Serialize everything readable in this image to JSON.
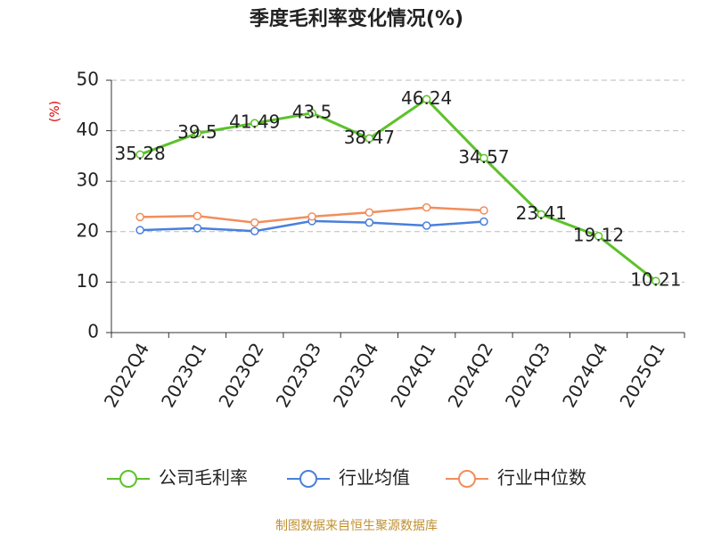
{
  "chart_data": {
    "type": "line",
    "title": "季度毛利率变化情况(%)",
    "y_label": "(%)",
    "categories": [
      "2022Q4",
      "2023Q1",
      "2023Q2",
      "2023Q3",
      "2023Q4",
      "2024Q1",
      "2024Q2",
      "2024Q3",
      "2024Q4",
      "2025Q1"
    ],
    "series": [
      {
        "name": "公司毛利率",
        "color": "#5cc22a",
        "values": [
          35.28,
          39.5,
          41.49,
          43.5,
          38.47,
          46.24,
          34.57,
          23.41,
          19.12,
          10.21
        ],
        "show_labels": true
      },
      {
        "name": "行业均值",
        "color": "#4a7fdc",
        "values": [
          20.3,
          20.7,
          20.1,
          22.1,
          21.8,
          21.2,
          22.0,
          null,
          null,
          null
        ]
      },
      {
        "name": "行业中位数",
        "color": "#f28d5c",
        "values": [
          22.9,
          23.1,
          21.8,
          23.0,
          23.8,
          24.8,
          24.2,
          null,
          null,
          null
        ]
      }
    ],
    "ylim": [
      0,
      50
    ],
    "yticks": [
      0,
      10,
      20,
      30,
      40,
      50
    ],
    "grid": true,
    "source": "制图数据来自恒生聚源数据库"
  }
}
